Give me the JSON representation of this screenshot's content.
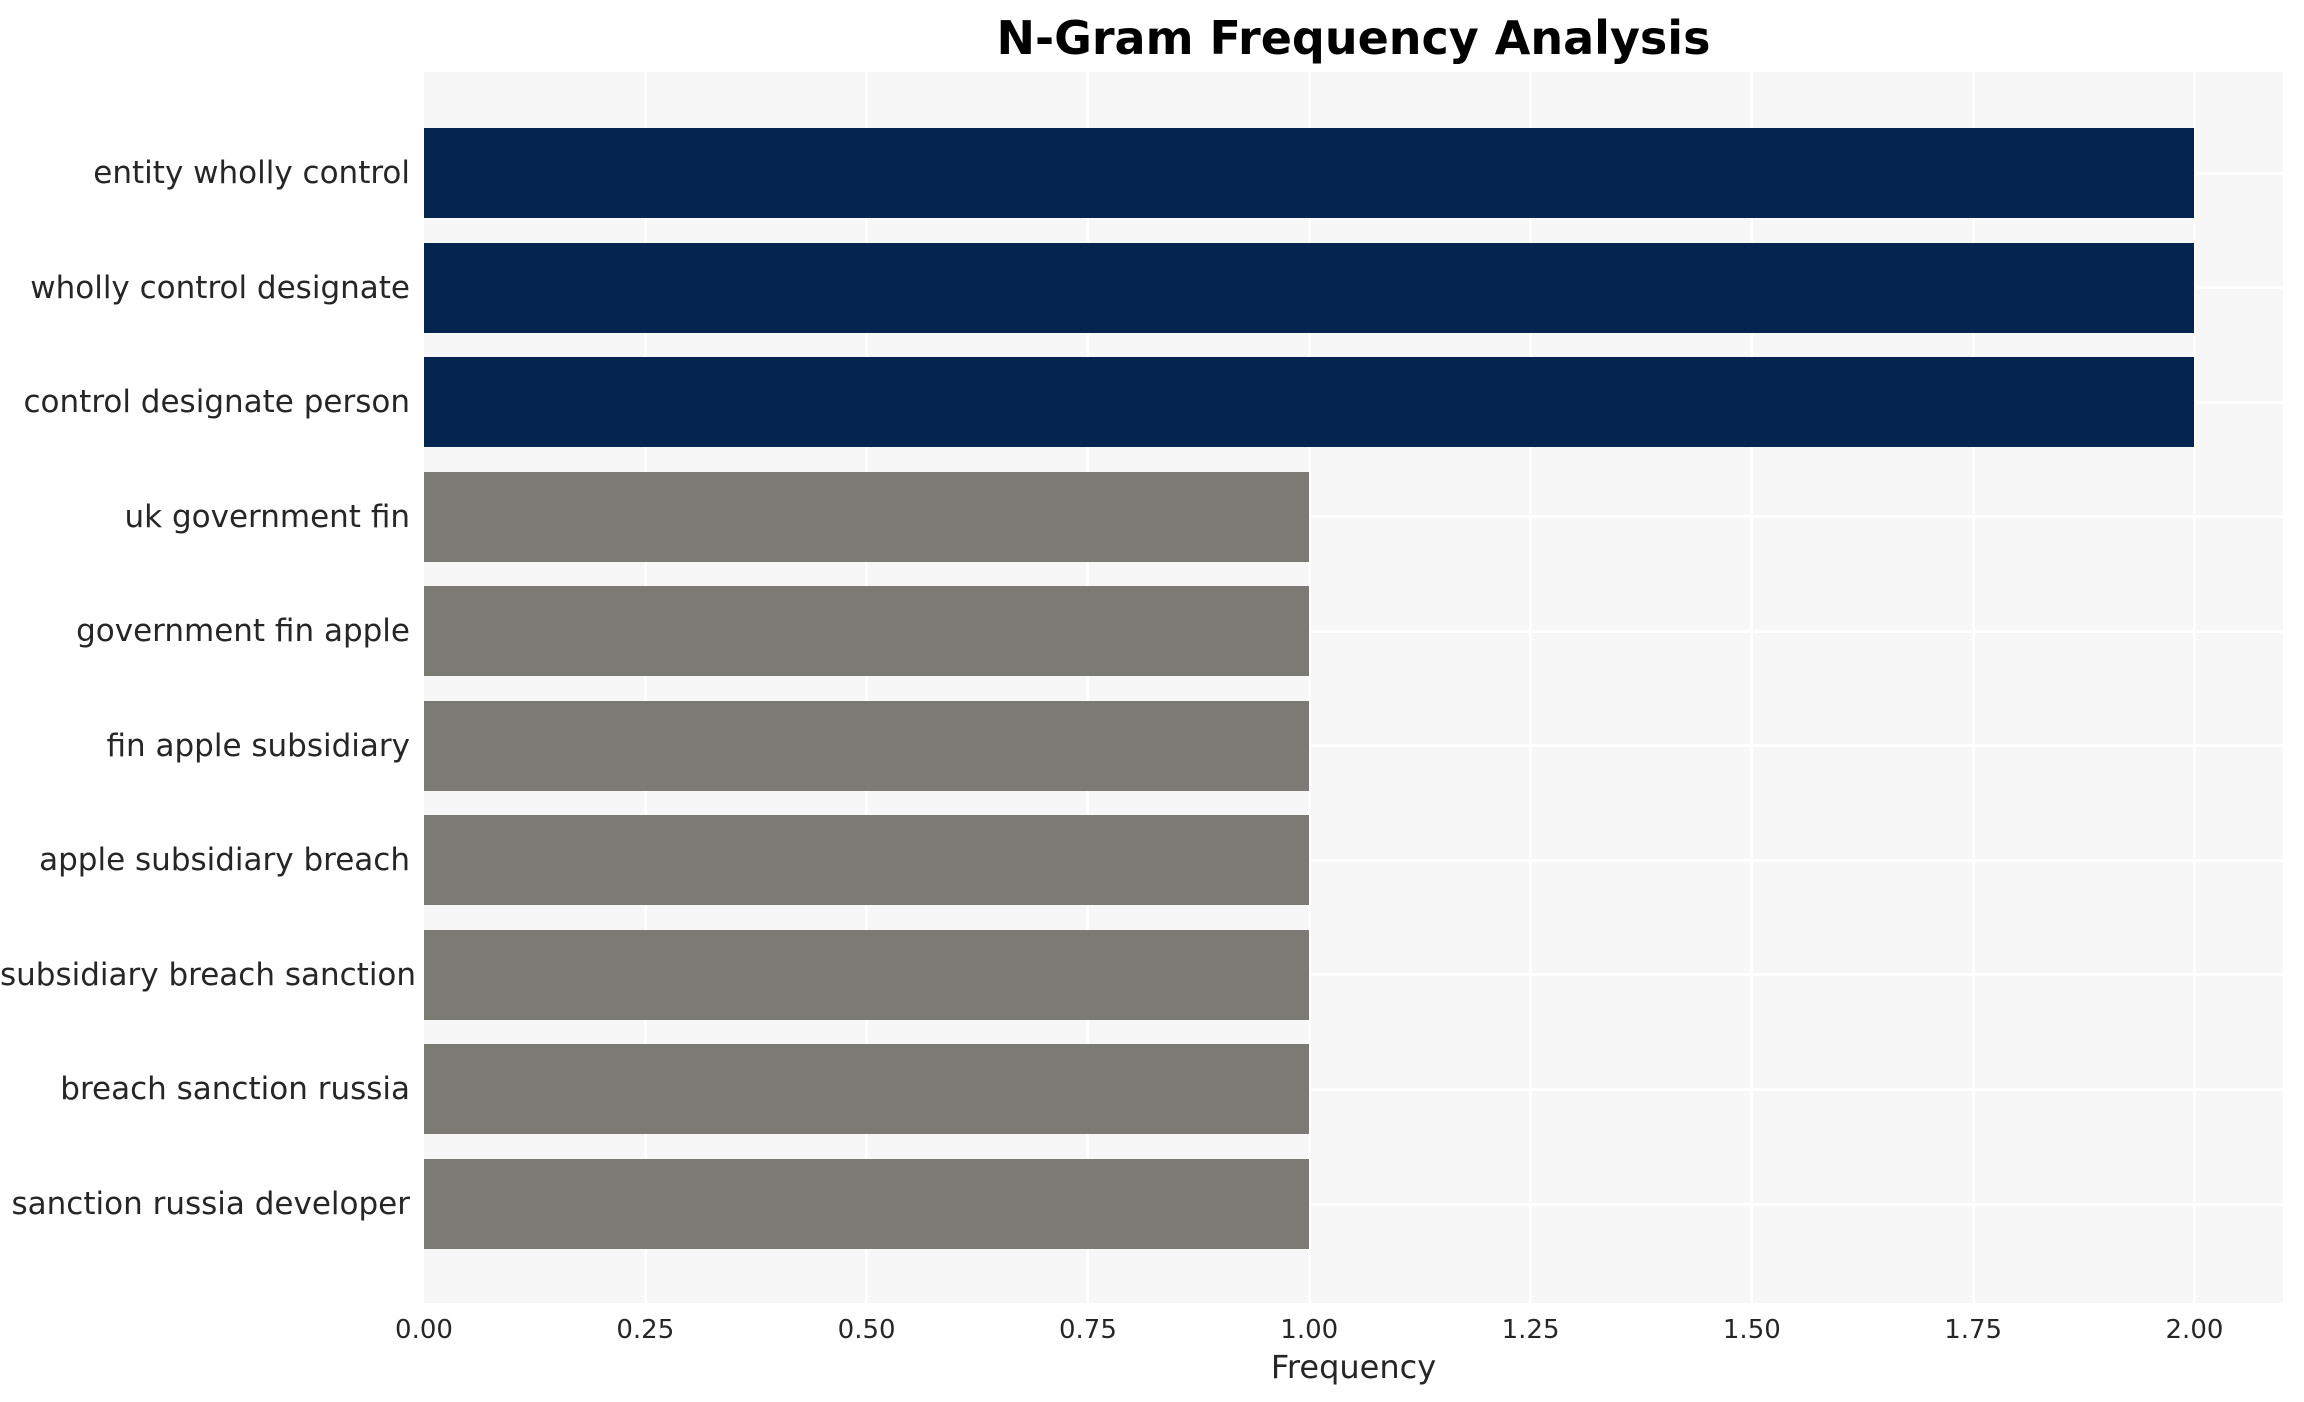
{
  "chart_data": {
    "type": "bar",
    "orientation": "horizontal",
    "title": "N-Gram Frequency Analysis",
    "xlabel": "Frequency",
    "ylabel": "",
    "categories": [
      "entity wholly control",
      "wholly control designate",
      "control designate person",
      "uk government fin",
      "government fin apple",
      "fin apple subsidiary",
      "apple subsidiary breach",
      "subsidiary breach sanction",
      "breach sanction russia",
      "sanction russia developer"
    ],
    "values": [
      2,
      2,
      2,
      1,
      1,
      1,
      1,
      1,
      1,
      1
    ],
    "bar_colors": [
      "#042550",
      "#042550",
      "#042550",
      "#7B7A74",
      "#7B7A74",
      "#7B7A74",
      "#7B7A74",
      "#7B7A74",
      "#7B7A74",
      "#7B7A74"
    ],
    "xticks": [
      {
        "value": 0.0,
        "label": "0.00"
      },
      {
        "value": 0.25,
        "label": "0.25"
      },
      {
        "value": 0.5,
        "label": "0.50"
      },
      {
        "value": 0.75,
        "label": "0.75"
      },
      {
        "value": 1.0,
        "label": "1.00"
      },
      {
        "value": 1.25,
        "label": "1.25"
      },
      {
        "value": 1.5,
        "label": "1.50"
      },
      {
        "value": 1.75,
        "label": "1.75"
      },
      {
        "value": 2.0,
        "label": "2.00"
      }
    ],
    "xlim": [
      0,
      2.1
    ],
    "grid": true,
    "legend": false,
    "plot_bg_color": "#F7F7F7",
    "grid_color": "#FFFFFF",
    "color_high": "#042550",
    "color_low": "#7B7A74"
  }
}
